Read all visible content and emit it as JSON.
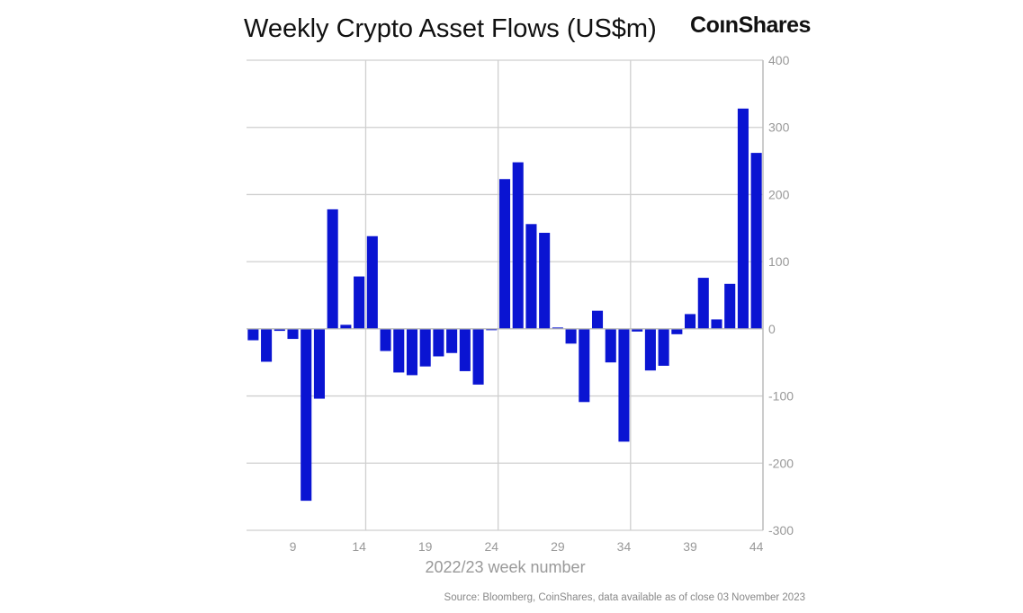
{
  "chart_data": {
    "type": "bar",
    "title": "Weekly Crypto Asset Flows (US$m)",
    "xlabel": "2022/23 week number",
    "ylabel": "",
    "ylim": [
      -300,
      400
    ],
    "yticks": [
      400,
      300,
      200,
      100,
      0,
      -100,
      -200,
      -300
    ],
    "xticks": [
      9,
      14,
      19,
      24,
      29,
      34,
      39,
      44
    ],
    "grid": true,
    "y_axis_position": "right",
    "bar_color": "#0a14d2",
    "categories": [
      6,
      7,
      8,
      9,
      10,
      11,
      12,
      13,
      14,
      15,
      16,
      17,
      18,
      19,
      20,
      21,
      22,
      23,
      24,
      25,
      26,
      27,
      28,
      29,
      30,
      31,
      32,
      33,
      34,
      35,
      36,
      37,
      38,
      39,
      40,
      41,
      42,
      43,
      44
    ],
    "values": [
      -17,
      -49,
      -3,
      -15,
      -256,
      -104,
      178,
      6,
      78,
      138,
      -33,
      -65,
      -69,
      -56,
      -41,
      -36,
      -63,
      -83,
      -2,
      223,
      248,
      156,
      143,
      2,
      -22,
      -109,
      27,
      -50,
      -168,
      -4,
      -62,
      -55,
      -8,
      22,
      76,
      14,
      67,
      328,
      262
    ]
  },
  "logo": {
    "text": "CoinShares"
  },
  "source": "Source: Bloomberg, CoinShares, data available as of close 03 November 2023"
}
